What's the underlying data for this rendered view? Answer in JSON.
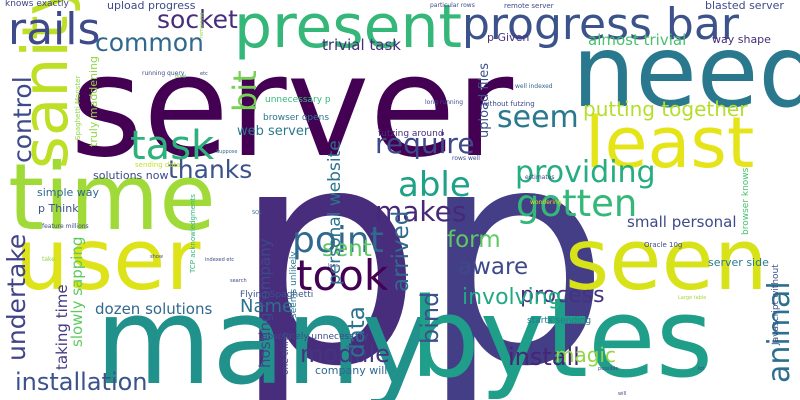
{
  "cloud": {
    "background": "#ffffff",
    "words": [
      {
        "text": "p",
        "color": "#472d7b"
      },
      {
        "text": "p",
        "color": "#433e85"
      },
      {
        "text": "server",
        "color": "#440154"
      },
      {
        "text": "many",
        "color": "#21918c"
      },
      {
        "text": "bytes",
        "color": "#1f9e89"
      },
      {
        "text": "seen",
        "color": "#d8e219"
      },
      {
        "text": "time",
        "color": "#a0da39"
      },
      {
        "text": "user",
        "color": "#dde318"
      },
      {
        "text": "need",
        "color": "#2a788e"
      },
      {
        "text": "least",
        "color": "#e5e419"
      },
      {
        "text": "present",
        "color": "#35b779"
      },
      {
        "text": "progress bar",
        "color": "#3b528b"
      },
      {
        "text": "took",
        "color": "#440154"
      },
      {
        "text": "sanity",
        "color": "#bddf26"
      },
      {
        "text": "rails",
        "color": "#3e4a89"
      },
      {
        "text": "point",
        "color": "#31688e"
      },
      {
        "text": "task",
        "color": "#2db27d"
      },
      {
        "text": "able",
        "color": "#1fa187"
      },
      {
        "text": "gotten",
        "color": "#35b779"
      },
      {
        "text": "providing",
        "color": "#26ad81"
      },
      {
        "text": "seem",
        "color": "#2a788e"
      },
      {
        "text": "require",
        "color": "#3e4989"
      },
      {
        "text": "makes",
        "color": "#482878"
      },
      {
        "text": "thanks",
        "color": "#3b528b"
      },
      {
        "text": "common",
        "color": "#31688e"
      },
      {
        "text": "socket",
        "color": "#472d7b"
      },
      {
        "text": "bit",
        "color": "#75d054"
      },
      {
        "text": "control",
        "color": "#3e4a89"
      },
      {
        "text": "undertake",
        "color": "#414487"
      },
      {
        "text": "installation",
        "color": "#3b528b"
      },
      {
        "text": "module",
        "color": "#453581"
      },
      {
        "text": "install",
        "color": "#482475"
      },
      {
        "text": "animal",
        "color": "#2e6f8e"
      },
      {
        "text": "process",
        "color": "#46327e"
      },
      {
        "text": "involving",
        "color": "#22a884"
      },
      {
        "text": "bind",
        "color": "#3b528b"
      },
      {
        "text": "aware",
        "color": "#3e4989"
      },
      {
        "text": "form",
        "color": "#5ec962"
      },
      {
        "text": "sent",
        "color": "#5ec962"
      },
      {
        "text": "arrived",
        "color": "#31688e"
      },
      {
        "text": "data",
        "color": "#2c728e"
      },
      {
        "text": "Name",
        "color": "#2c728e"
      },
      {
        "text": "magic",
        "color": "#8fd744"
      },
      {
        "text": "putting together",
        "color": "#b5de2b"
      },
      {
        "text": "personal website",
        "color": "#2c728e"
      },
      {
        "text": "hosting company",
        "color": "#3e4989"
      },
      {
        "text": "dozen solutions",
        "color": "#31688e"
      },
      {
        "text": "slowly sapping",
        "color": "#5ec962"
      },
      {
        "text": "taking time",
        "color": "#443983"
      },
      {
        "text": "small personal",
        "color": "#3e4a89"
      },
      {
        "text": "almost trivial",
        "color": "#48c16e"
      },
      {
        "text": "trivial task",
        "color": "#472d7b"
      },
      {
        "text": "upload files",
        "color": "#3b528b"
      },
      {
        "text": "web server",
        "color": "#2a788e"
      },
      {
        "text": "truly maddening",
        "color": "#8fd744"
      },
      {
        "text": "company will",
        "color": "#31688e"
      },
      {
        "text": "solutions now",
        "color": "#3e4a89"
      },
      {
        "text": "simple way",
        "color": "#31688e"
      },
      {
        "text": "p Think",
        "color": "#3b528b"
      },
      {
        "text": "p Given",
        "color": "#46327e"
      },
      {
        "text": "way shape",
        "color": "#472d7b"
      },
      {
        "text": "server side",
        "color": "#2a788e"
      },
      {
        "text": "blasted server",
        "color": "#3e4a89"
      },
      {
        "text": "upload progress",
        "color": "#3e4989"
      },
      {
        "text": "knows exactly",
        "color": "#414487"
      },
      {
        "text": "Javascript without",
        "color": "#3b528b"
      },
      {
        "text": "browser knows",
        "color": "#48c16e"
      },
      {
        "text": "Flying Spaghetti",
        "color": "#3b528b"
      },
      {
        "text": "seems unlikely",
        "color": "#2a788e"
      },
      {
        "text": "unnecessary p",
        "color": "#35b779"
      },
      {
        "text": "browser opens",
        "color": "#2a788e"
      },
      {
        "text": "futzing around",
        "color": "#472d7b"
      },
      {
        "text": "absolutely unnecessary",
        "color": "#3e4a89"
      },
      {
        "text": "starts sending",
        "color": "#2a788e"
      },
      {
        "text": "one thing",
        "color": "#414487"
      },
      {
        "text": "sending data",
        "color": "#bddf26"
      },
      {
        "text": "Spaghetti Monster",
        "color": "#8fd744"
      },
      {
        "text": "feature millions",
        "color": "#3e4a89"
      },
      {
        "text": "TCP acknowledgments",
        "color": "#35b779"
      },
      {
        "text": "without futzing",
        "color": "#3e4a89"
      },
      {
        "text": "long running",
        "color": "#3e4a89"
      },
      {
        "text": "well indexed",
        "color": "#31688e"
      },
      {
        "text": "rows well",
        "color": "#3e4a89"
      },
      {
        "text": "estimates",
        "color": "#3e4a89"
      },
      {
        "text": "wondering",
        "color": "#d8e219"
      },
      {
        "text": "remote server",
        "color": "#3e4a89"
      },
      {
        "text": "particular rows",
        "color": "#3e4a89"
      },
      {
        "text": "running query",
        "color": "#3e4a89"
      },
      {
        "text": "Oracle 10g",
        "color": "#3e4a89"
      },
      {
        "text": "remaining",
        "color": "#8fd744"
      },
      {
        "text": "etc",
        "color": "#3e4a89"
      },
      {
        "text": "bind",
        "color": "#5ec962"
      },
      {
        "text": "Suppose",
        "color": "#31688e"
      },
      {
        "text": "SQL",
        "color": "#31688e"
      },
      {
        "text": "indexed etc",
        "color": "#3e4a89"
      },
      {
        "text": "lens",
        "color": "#3e4a89"
      },
      {
        "text": "search",
        "color": "#3e4a89"
      },
      {
        "text": "show",
        "color": "#3e4a89"
      },
      {
        "text": "take",
        "color": "#8fd744"
      },
      {
        "text": "Large table",
        "color": "#a0da39"
      },
      {
        "text": "possible",
        "color": "#3e4a89"
      },
      {
        "text": "will",
        "color": "#3e4a89"
      },
      {
        "text": "lot",
        "color": "#3e4a89"
      }
    ]
  }
}
